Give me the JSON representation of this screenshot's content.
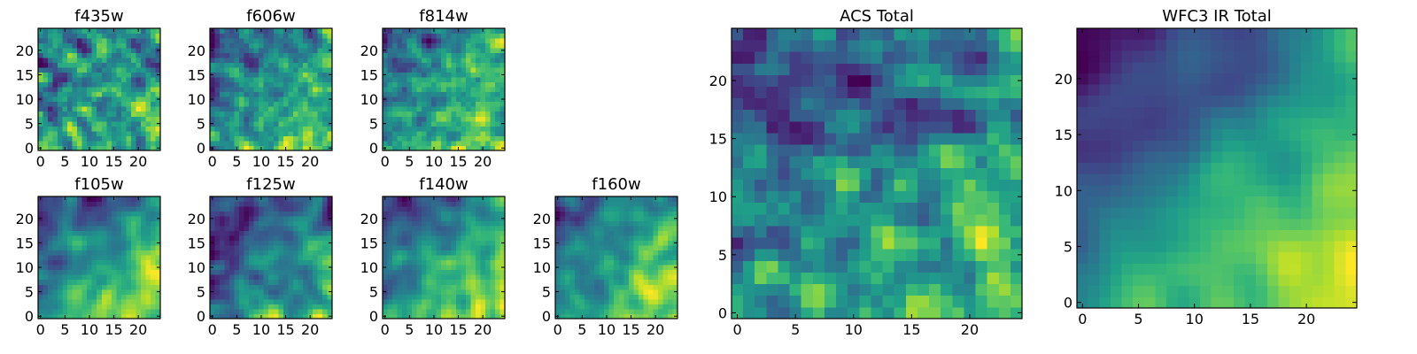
{
  "chart_data": [
    {
      "type": "heatmap",
      "title": "f435w",
      "x_ticks": [
        "0",
        "5",
        "10",
        "15",
        "20"
      ],
      "y_ticks": [
        "0",
        "5",
        "10",
        "15",
        "20"
      ],
      "xlim": [
        -0.5,
        24.5
      ],
      "ylim": [
        -0.5,
        24.5
      ],
      "grid_size": 25,
      "colormap": "viridis",
      "seed": 11,
      "smooth": 0.15,
      "gradient": 0.15
    },
    {
      "type": "heatmap",
      "title": "f606w",
      "x_ticks": [
        "0",
        "5",
        "10",
        "15",
        "20"
      ],
      "y_ticks": [
        "0",
        "5",
        "10",
        "15",
        "20"
      ],
      "xlim": [
        -0.5,
        24.5
      ],
      "ylim": [
        -0.5,
        24.5
      ],
      "grid_size": 25,
      "colormap": "viridis",
      "seed": 23,
      "smooth": 0.25,
      "gradient": 0.5
    },
    {
      "type": "heatmap",
      "title": "f814w",
      "x_ticks": [
        "0",
        "5",
        "10",
        "15",
        "20"
      ],
      "y_ticks": [
        "0",
        "5",
        "10",
        "15",
        "20"
      ],
      "xlim": [
        -0.5,
        24.5
      ],
      "ylim": [
        -0.5,
        24.5
      ],
      "grid_size": 25,
      "colormap": "viridis",
      "seed": 37,
      "smooth": 0.25,
      "gradient": 0.55
    },
    {
      "type": "heatmap",
      "title": "f105w",
      "x_ticks": [
        "0",
        "5",
        "10",
        "15",
        "20"
      ],
      "y_ticks": [
        "0",
        "5",
        "10",
        "15",
        "20"
      ],
      "xlim": [
        -0.5,
        24.5
      ],
      "ylim": [
        -0.5,
        24.5
      ],
      "grid_size": 25,
      "colormap": "viridis",
      "seed": 41,
      "smooth": 0.6,
      "gradient": 0.7
    },
    {
      "type": "heatmap",
      "title": "f125w",
      "x_ticks": [
        "0",
        "5",
        "10",
        "15",
        "20"
      ],
      "y_ticks": [
        "0",
        "5",
        "10",
        "15",
        "20"
      ],
      "xlim": [
        -0.5,
        24.5
      ],
      "ylim": [
        -0.5,
        24.5
      ],
      "grid_size": 25,
      "colormap": "viridis",
      "seed": 53,
      "smooth": 0.6,
      "gradient": 0.5
    },
    {
      "type": "heatmap",
      "title": "f140w",
      "x_ticks": [
        "0",
        "5",
        "10",
        "15",
        "20"
      ],
      "y_ticks": [
        "0",
        "5",
        "10",
        "15",
        "20"
      ],
      "xlim": [
        -0.5,
        24.5
      ],
      "ylim": [
        -0.5,
        24.5
      ],
      "grid_size": 25,
      "colormap": "viridis",
      "seed": 67,
      "smooth": 0.5,
      "gradient": 0.65
    },
    {
      "type": "heatmap",
      "title": "f160w",
      "x_ticks": [
        "0",
        "5",
        "10",
        "15",
        "20"
      ],
      "y_ticks": [
        "0",
        "5",
        "10",
        "15",
        "20"
      ],
      "xlim": [
        -0.5,
        24.5
      ],
      "ylim": [
        -0.5,
        24.5
      ],
      "grid_size": 25,
      "colormap": "viridis",
      "seed": 79,
      "smooth": 0.5,
      "gradient": 0.6
    },
    {
      "type": "heatmap",
      "title": "ACS Total",
      "x_ticks": [
        "0",
        "5",
        "10",
        "15",
        "20"
      ],
      "y_ticks": [
        "0",
        "5",
        "10",
        "15",
        "20"
      ],
      "xlim": [
        -0.5,
        24.5
      ],
      "ylim": [
        -0.5,
        24.5
      ],
      "grid_size": 25,
      "colormap": "viridis",
      "seed": 97,
      "smooth": 0.2,
      "gradient": 0.5
    },
    {
      "type": "heatmap",
      "title": "WFC3 IR Total",
      "x_ticks": [
        "0",
        "5",
        "10",
        "15",
        "20"
      ],
      "y_ticks": [
        "0",
        "5",
        "10",
        "15",
        "20"
      ],
      "xlim": [
        -0.5,
        24.5
      ],
      "ylim": [
        -0.5,
        24.5
      ],
      "grid_size": 25,
      "colormap": "viridis",
      "seed": 101,
      "smooth": 0.75,
      "gradient": 0.9
    }
  ]
}
